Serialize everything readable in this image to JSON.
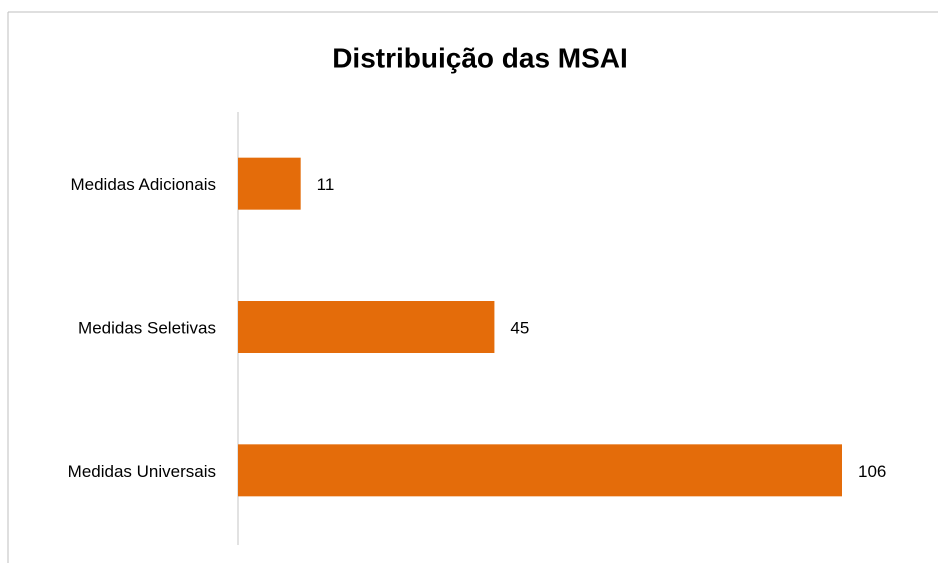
{
  "chart_data": {
    "type": "bar",
    "orientation": "horizontal",
    "title": "Distribuição das MSAI",
    "categories": [
      "Medidas Adicionais",
      "Medidas Seletivas",
      "Medidas Universais"
    ],
    "values": [
      11,
      45,
      106
    ],
    "color": "#e46c0a"
  }
}
